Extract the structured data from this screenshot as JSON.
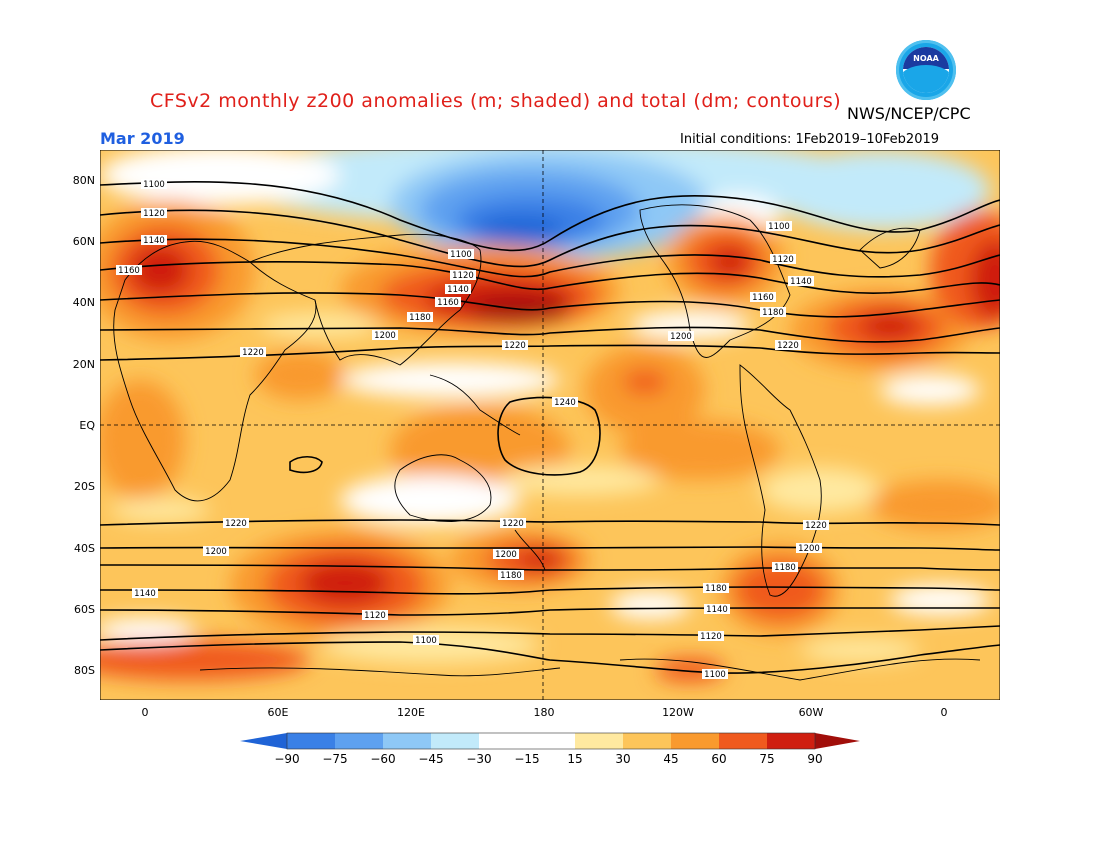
{
  "header": {
    "title": "CFSv2 monthly z200 anomalies (m; shaded) and total (dm; contours)",
    "org": "NWS/NCEP/CPC",
    "month": "Mar 2019",
    "init": "Initial conditions: 1Feb2019–10Feb2019",
    "logo_text": "NOAA"
  },
  "axes": {
    "lat_labels": [
      "80N",
      "60N",
      "40N",
      "20N",
      "EQ",
      "20S",
      "40S",
      "60S",
      "80S"
    ],
    "lon_labels": [
      "0",
      "60E",
      "120E",
      "180",
      "120W",
      "60W",
      "0"
    ]
  },
  "colorbar": {
    "ticks": [
      "−90",
      "−75",
      "−60",
      "−45",
      "−30",
      "−15",
      "15",
      "30",
      "45",
      "60",
      "75",
      "90"
    ],
    "colors": [
      "#1f63d6",
      "#3a80e6",
      "#5ea1f0",
      "#8ec8f6",
      "#c2eafa",
      "#ffffff",
      "#ffe9a0",
      "#fdc55a",
      "#f99a2e",
      "#f05a1e",
      "#cf1f10",
      "#a10e0a"
    ]
  },
  "contour_labels": [
    "1100",
    "1120",
    "1140",
    "1160",
    "1180",
    "1200",
    "1220",
    "1240"
  ]
}
